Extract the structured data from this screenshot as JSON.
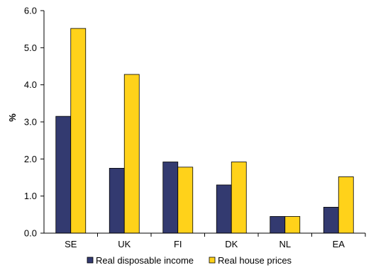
{
  "chart_data": {
    "type": "bar",
    "categories": [
      "SE",
      "UK",
      "FI",
      "DK",
      "NL",
      "EA"
    ],
    "series": [
      {
        "name": "Real disposable income",
        "color": "#333a70",
        "values": [
          3.15,
          1.75,
          1.92,
          1.3,
          0.45,
          0.7
        ]
      },
      {
        "name": "Real house prices",
        "color": "#ffd21a",
        "values": [
          5.52,
          4.28,
          1.78,
          1.92,
          0.45,
          1.52
        ]
      }
    ],
    "ylabel": "%",
    "ylim": [
      0,
      6
    ],
    "yticks": [
      "0.0",
      "1.0",
      "2.0",
      "3.0",
      "4.0",
      "5.0",
      "6.0"
    ],
    "grid": false,
    "legend_position": "bottom"
  }
}
